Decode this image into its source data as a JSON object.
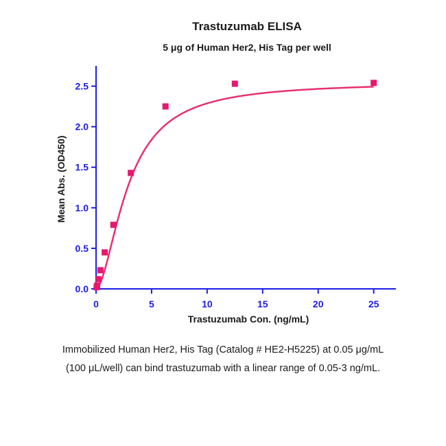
{
  "colors": {
    "axis": "#1c1ce6",
    "curve": "#e8306e",
    "marker": "#e8186e",
    "text": "#1a1a1a"
  },
  "chart_data": {
    "type": "scatter",
    "title": "Trastuzumab ELISA",
    "subtitle": "5 μg of Human Her2, His Tag per well",
    "xlabel": "Trastuzumab Con. (ng/mL)",
    "ylabel": "Mean Abs. (OD450)",
    "xlim": [
      0,
      27
    ],
    "ylim": [
      0,
      2.75
    ],
    "x_ticks": [
      "0",
      "5",
      "10",
      "15",
      "20",
      "25"
    ],
    "y_ticks": [
      "0.0",
      "0.5",
      "1.0",
      "1.5",
      "2.0",
      "2.5"
    ],
    "grid": false,
    "legend": "none",
    "series": [
      {
        "marker": "square",
        "x": [
          0.05,
          0.1,
          0.2,
          0.39,
          0.78,
          1.56,
          3.13,
          6.25,
          12.5,
          25
        ],
        "y": [
          0.02,
          0.04,
          0.12,
          0.23,
          0.45,
          0.79,
          1.43,
          2.25,
          2.53,
          2.54
        ]
      }
    ],
    "fit_curve": {
      "model": "4PL",
      "bottom": 0.0,
      "top": 2.55,
      "ec50": 2.9,
      "hill": 1.75
    }
  },
  "caption": {
    "line1": "Immobilized Human Her2, His Tag (Catalog # HE2-H5225) at 0.05 μg/mL",
    "line2": "(100 μL/well) can bind trastuzumab with a linear range of 0.05-3 ng/mL."
  }
}
